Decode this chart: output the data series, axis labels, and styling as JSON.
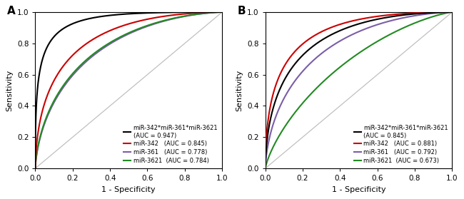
{
  "panel_A": {
    "label": "A",
    "curves": [
      {
        "name1": "miR-342*miR-361*miR-3621",
        "name2": "(AUC = 0.947)",
        "color": "#000000",
        "auc": 0.947,
        "zorder": 5
      },
      {
        "name1": "miR-342   (AUC = 0.845)",
        "name2": "",
        "color": "#cc0000",
        "auc": 0.845,
        "zorder": 4
      },
      {
        "name1": "miR-361   (AUC = 0.778)",
        "name2": "",
        "color": "#7b5ea7",
        "auc": 0.778,
        "zorder": 3
      },
      {
        "name1": "miR-3621  (AUC = 0.784)",
        "name2": "",
        "color": "#228b22",
        "auc": 0.784,
        "zorder": 3
      }
    ]
  },
  "panel_B": {
    "label": "B",
    "curves": [
      {
        "name1": "miR-342*miR-361*miR-3621",
        "name2": "(AUC = 0.845)",
        "color": "#000000",
        "auc": 0.845,
        "zorder": 5
      },
      {
        "name1": "miR-342   (AUC = 0.881)",
        "name2": "",
        "color": "#cc0000",
        "auc": 0.881,
        "zorder": 4
      },
      {
        "name1": "miR-361   (AUC = 0.792)",
        "name2": "",
        "color": "#7b5ea7",
        "auc": 0.792,
        "zorder": 3
      },
      {
        "name1": "miR-3621  (AUC = 0.673)",
        "name2": "",
        "color": "#228b22",
        "auc": 0.673,
        "zorder": 2
      }
    ]
  },
  "xlabel": "1 - Specificity",
  "ylabel": "Sensitivity",
  "xlim": [
    0,
    1
  ],
  "ylim": [
    0,
    1
  ],
  "xticks": [
    0.0,
    0.2,
    0.4,
    0.6,
    0.8,
    1.0
  ],
  "yticks": [
    0.0,
    0.2,
    0.4,
    0.6,
    0.8,
    1.0
  ],
  "background_color": "#ffffff",
  "diag_color": "#c0c0c0",
  "linewidth": 1.5
}
